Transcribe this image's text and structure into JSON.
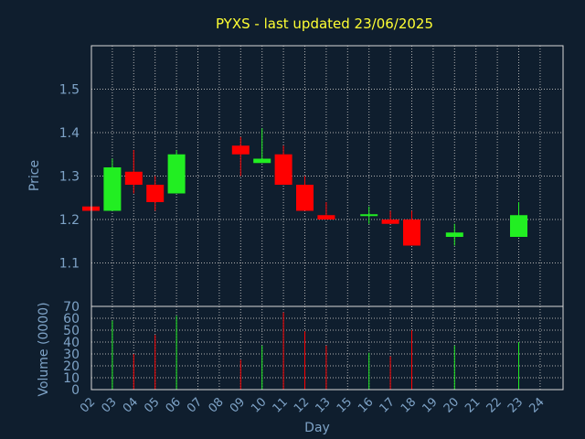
{
  "chart_data": {
    "type": "candlestick",
    "title": "PYXS - last updated 23/06/2025",
    "xlabel": "Day",
    "price_panel": {
      "ylabel": "Price",
      "ylim": [
        1.0,
        1.6
      ],
      "yticks": [
        "1.1",
        "1.2",
        "1.3",
        "1.4",
        "1.5"
      ],
      "grid": true
    },
    "volume_panel": {
      "ylabel": "Volume (0000)",
      "ylim": [
        0,
        70
      ],
      "yticks": [
        "0",
        "10",
        "20",
        "30",
        "40",
        "50",
        "60",
        "70"
      ],
      "grid": true
    },
    "x_ticks": [
      "02",
      "03",
      "04",
      "05",
      "06",
      "07",
      "08",
      "09",
      "10",
      "11",
      "12",
      "13",
      "15",
      "16",
      "17",
      "18",
      "19",
      "20",
      "21",
      "22",
      "23",
      "24"
    ],
    "candles": [
      {
        "day": "02",
        "open": 1.23,
        "close": 1.22,
        "high": 1.23,
        "low": 1.22,
        "volume": 0
      },
      {
        "day": "03",
        "open": 1.22,
        "close": 1.32,
        "high": 1.34,
        "low": 1.22,
        "volume": 58
      },
      {
        "day": "04",
        "open": 1.31,
        "close": 1.28,
        "high": 1.36,
        "low": 1.26,
        "volume": 30
      },
      {
        "day": "05",
        "open": 1.28,
        "close": 1.24,
        "high": 1.3,
        "low": 1.22,
        "volume": 46
      },
      {
        "day": "06",
        "open": 1.26,
        "close": 1.35,
        "high": 1.36,
        "low": 1.26,
        "volume": 62
      },
      {
        "day": "09",
        "open": 1.37,
        "close": 1.35,
        "high": 1.39,
        "low": 1.3,
        "volume": 25
      },
      {
        "day": "10",
        "open": 1.33,
        "close": 1.34,
        "high": 1.41,
        "low": 1.33,
        "volume": 37
      },
      {
        "day": "11",
        "open": 1.35,
        "close": 1.28,
        "high": 1.37,
        "low": 1.28,
        "volume": 65
      },
      {
        "day": "12",
        "open": 1.28,
        "close": 1.22,
        "high": 1.3,
        "low": 1.22,
        "volume": 49
      },
      {
        "day": "13",
        "open": 1.21,
        "close": 1.2,
        "high": 1.24,
        "low": 1.2,
        "volume": 37
      },
      {
        "day": "16",
        "open": 1.21,
        "close": 1.21,
        "high": 1.23,
        "low": 1.19,
        "volume": 31
      },
      {
        "day": "17",
        "open": 1.2,
        "close": 1.19,
        "high": 1.22,
        "low": 1.19,
        "volume": 28
      },
      {
        "day": "18",
        "open": 1.2,
        "close": 1.14,
        "high": 1.22,
        "low": 1.14,
        "volume": 50
      },
      {
        "day": "20",
        "open": 1.16,
        "close": 1.17,
        "high": 1.19,
        "low": 1.14,
        "volume": 37
      },
      {
        "day": "23",
        "open": 1.16,
        "close": 1.21,
        "high": 1.24,
        "low": 1.16,
        "volume": 40
      }
    ],
    "colors": {
      "background": "#0f1e2e",
      "frame": "#d8d8d8",
      "grid": "#b0b0b0",
      "title": "#ffff33",
      "axis_text": "#7ea3c7",
      "up": "#22ee22",
      "down": "#ff0000"
    }
  }
}
